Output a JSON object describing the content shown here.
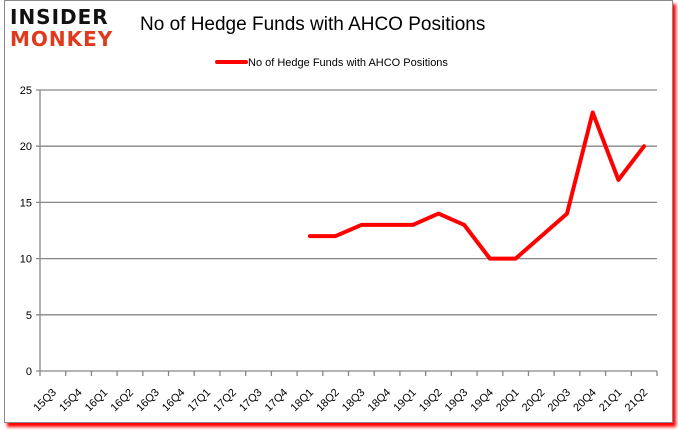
{
  "logo": {
    "line1": "INSIDER",
    "line2": "MONKEY"
  },
  "header": {
    "title": "No of Hedge Funds with AHCO Positions"
  },
  "colors": {
    "series": "#ff0000",
    "grid": "#868686",
    "logo_red": "#e03a1e"
  },
  "chart_data": {
    "type": "line",
    "title": "No of Hedge Funds with AHCO Positions",
    "xlabel": "",
    "ylabel": "",
    "ylim": [
      0,
      25
    ],
    "yticks": [
      0,
      5,
      10,
      15,
      20,
      25
    ],
    "grid": true,
    "legend_position": "top",
    "categories": [
      "15Q3",
      "15Q4",
      "16Q1",
      "16Q2",
      "16Q3",
      "16Q4",
      "17Q1",
      "17Q2",
      "17Q3",
      "17Q4",
      "18Q1",
      "18Q2",
      "18Q3",
      "18Q4",
      "19Q1",
      "19Q2",
      "19Q3",
      "19Q4",
      "20Q1",
      "20Q2",
      "20Q3",
      "20Q4",
      "21Q1",
      "21Q2"
    ],
    "series": [
      {
        "name": "No of Hedge Funds with AHCO Positions",
        "values": [
          null,
          null,
          null,
          null,
          null,
          null,
          null,
          null,
          null,
          null,
          12,
          12,
          13,
          13,
          13,
          14,
          13,
          10,
          10,
          12,
          14,
          23,
          17,
          20
        ]
      }
    ]
  }
}
